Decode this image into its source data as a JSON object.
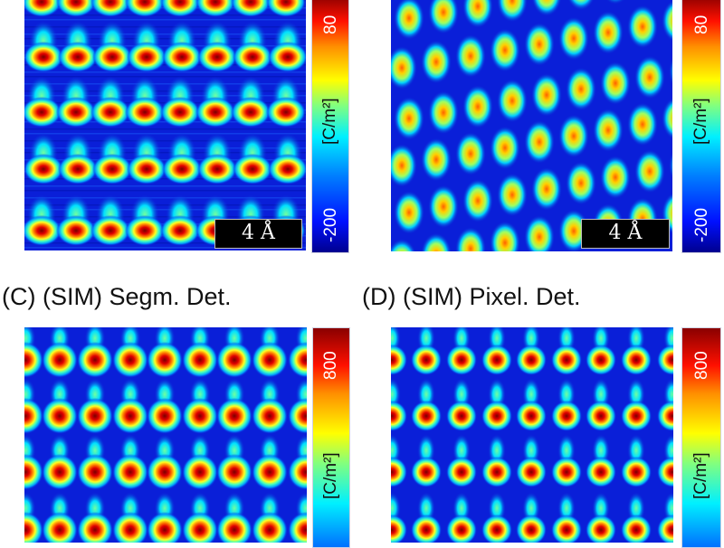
{
  "chart_data": [
    {
      "type": "heatmap",
      "panel": "A",
      "title": "",
      "colormap": "jet",
      "colorbar": {
        "label": "[C/m²]",
        "ticks": [
          "-200",
          "80"
        ],
        "range_visible": [
          -200,
          800
        ]
      },
      "scale_bar": "4 Å",
      "pattern": {
        "rows_visible": 5,
        "cols_visible": 8,
        "style": "noisy-experimental"
      }
    },
    {
      "type": "heatmap",
      "panel": "B",
      "title": "",
      "colormap": "jet",
      "colorbar": {
        "label": "[C/m²]",
        "ticks": [
          "-200",
          "80"
        ],
        "range_visible": [
          -200,
          800
        ]
      },
      "scale_bar": "4 Å",
      "pattern": {
        "rows_visible": 6,
        "cols_visible": 8,
        "style": "tilted-lattice"
      }
    },
    {
      "type": "heatmap",
      "panel": "C",
      "title": "(C) (SIM) Segm. Det.",
      "colormap": "jet",
      "colorbar": {
        "label": "[C/m²]",
        "ticks": [
          "800"
        ]
      },
      "pattern": {
        "rows_visible": 4,
        "cols_visible": 9,
        "style": "simulated-smooth"
      }
    },
    {
      "type": "heatmap",
      "panel": "D",
      "title": "(D) (SIM) Pixel. Det.",
      "colormap": "jet",
      "colorbar": {
        "label": "[C/m²]",
        "ticks": [
          "800"
        ]
      },
      "pattern": {
        "rows_visible": 4,
        "cols_visible": 9,
        "style": "simulated-compact"
      }
    }
  ],
  "panels": {
    "a": {
      "tick_top": "80",
      "tick_bottom": "-200",
      "unit": "[C/m²]",
      "scale": "4 Å"
    },
    "b": {
      "tick_top": "80",
      "tick_bottom": "-200",
      "unit": "[C/m²]",
      "scale": "4 Å"
    },
    "c": {
      "label": "(C) (SIM) Segm. Det.",
      "tick_top": "800",
      "unit": "[C/m²]"
    },
    "d": {
      "label": "(D) (SIM) Pixel. Det.",
      "tick_top": "800",
      "unit": "[C/m²]"
    }
  },
  "colors": {
    "background": "#0a1fd8",
    "deep": "#00008f",
    "peak": "#8a0000"
  }
}
